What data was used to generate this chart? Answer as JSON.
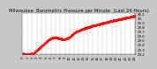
{
  "title": "Milwaukee  Barometric Pressure per Minute  (Last 24 Hours)",
  "bg_color": "#c8c8c8",
  "plot_bg_color": "#ffffff",
  "line_color": "#ff0000",
  "grid_color": "#999999",
  "y_min": 29.2,
  "y_max": 30.1,
  "y_ticks": [
    29.2,
    29.3,
    29.4,
    29.5,
    29.6,
    29.7,
    29.8,
    29.9,
    30.0,
    30.1
  ],
  "y_tick_labels": [
    "29.2",
    "29.3",
    "29.4",
    "29.5",
    "29.6",
    "29.7",
    "29.8",
    "29.9",
    "30.",
    "30.1"
  ],
  "num_points": 1440,
  "x_tick_positions": [
    0,
    60,
    120,
    180,
    240,
    300,
    360,
    420,
    480,
    540,
    600,
    660,
    720,
    780,
    840,
    900,
    960,
    1020,
    1080,
    1140,
    1200,
    1260,
    1320,
    1380,
    1439
  ],
  "x_tick_labels": [
    "0",
    "1",
    "2",
    "3",
    "4",
    "5",
    "6",
    "7",
    "8",
    "9",
    "10",
    "11",
    "12",
    "13",
    "14",
    "15",
    "16",
    "17",
    "18",
    "19",
    "20",
    "21",
    "22",
    "23",
    "24"
  ],
  "title_fontsize": 3.8,
  "tick_fontsize": 2.8,
  "marker_size": 0.5,
  "seed": 42
}
